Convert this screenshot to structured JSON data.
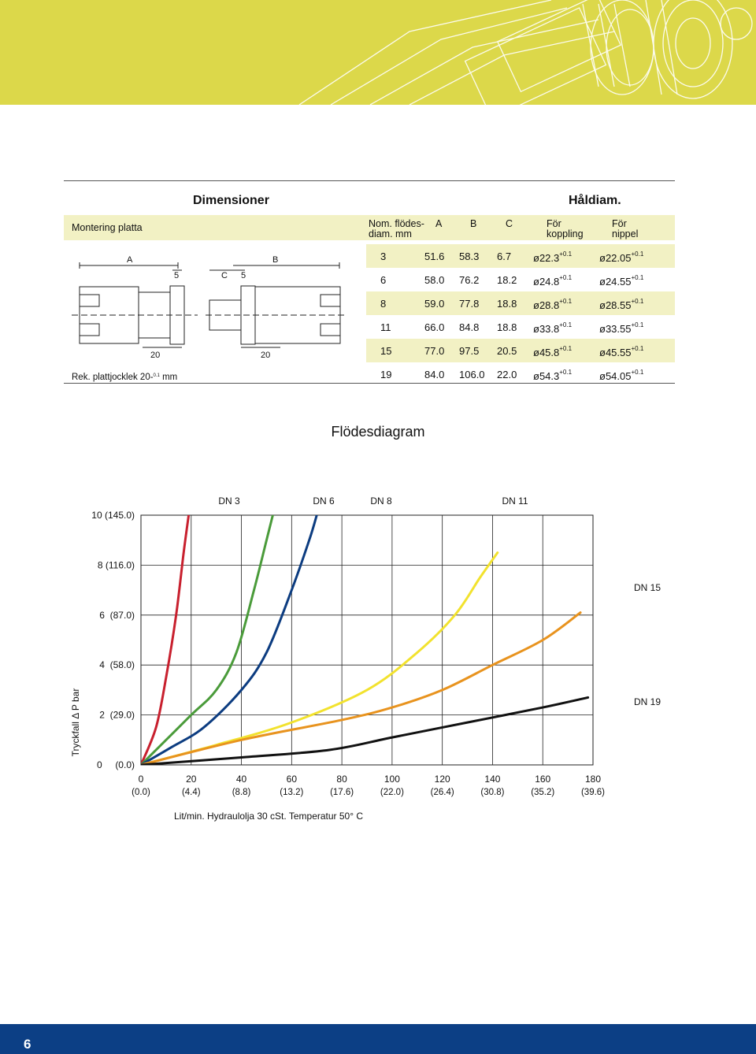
{
  "page_number": "6",
  "dimensions": {
    "title": "Dimensioner",
    "hole_title": "Håldiam.",
    "mounting_label": "Montering platta",
    "headers": {
      "nom_line1": "Nom. flödes-",
      "nom_line2": "diam. mm",
      "a": "A",
      "b": "B",
      "c": "C",
      "coupling_line1": "För",
      "coupling_line2": "koppling",
      "nipple_line1": "För",
      "nipple_line2": "nippel"
    },
    "rows": [
      {
        "nom": "3",
        "a": "51.6",
        "b": "58.3",
        "c": "6.7",
        "coupling": "ø22.3",
        "nipple": "ø22.05",
        "tol": "+0.1"
      },
      {
        "nom": "6",
        "a": "58.0",
        "b": "76.2",
        "c": "18.2",
        "coupling": "ø24.8",
        "nipple": "ø24.55",
        "tol": "+0.1"
      },
      {
        "nom": "8",
        "a": "59.0",
        "b": "77.8",
        "c": "18.8",
        "coupling": "ø28.8",
        "nipple": "ø28.55",
        "tol": "+0.1"
      },
      {
        "nom": "11",
        "a": "66.0",
        "b": "84.8",
        "c": "18.8",
        "coupling": "ø33.8",
        "nipple": "ø33.55",
        "tol": "+0.1"
      },
      {
        "nom": "15",
        "a": "77.0",
        "b": "97.5",
        "c": "20.5",
        "coupling": "ø45.8",
        "nipple": "ø45.55",
        "tol": "+0.1"
      },
      {
        "nom": "19",
        "a": "84.0",
        "b": "106.0",
        "c": "22.0",
        "coupling": "ø54.3",
        "nipple": "ø54.05",
        "tol": "+0.1"
      }
    ],
    "drawing_labels": {
      "a": "A",
      "b": "B",
      "c": "C",
      "five_left": "5",
      "five_right": "5",
      "twenty_left": "20",
      "twenty_right": "20"
    },
    "rek_prefix": "Rek. plattjocklek 20-",
    "rek_tol": "0.1",
    "rek_unit": "mm"
  },
  "chart_data": {
    "type": "line",
    "title": "Flödesdiagram",
    "ylabel": "Tryckfall  Δ P bar",
    "xlabel": "Lit/min. Hydraulolja 30 cSt. Temperatur 50° C",
    "xlim": [
      0,
      180
    ],
    "ylim": [
      0,
      10
    ],
    "grid": true,
    "x_ticks": [
      0,
      20,
      40,
      60,
      80,
      100,
      120,
      140,
      160,
      180
    ],
    "x_tick_labels": [
      "0",
      "20",
      "40",
      "60",
      "80",
      "100",
      "120",
      "140",
      "160",
      "180"
    ],
    "x_tick_sub": [
      "(0.0)",
      "(4.4)",
      "(8.8)",
      "(13.2)",
      "(17.6)",
      "(22.0)",
      "(26.4)",
      "(30.8)",
      "(35.2)",
      "(39.6)"
    ],
    "y_ticks": [
      0,
      2,
      4,
      6,
      8,
      10
    ],
    "y_tick_labels": [
      "0     (0.0)",
      "2  (29.0)",
      "4  (58.0)",
      "6  (87.0)",
      "8 (116.0)",
      "10 (145.0)"
    ],
    "series": [
      {
        "name": "DN 3",
        "color": "#c8202e",
        "x": [
          0,
          6,
          10,
          14,
          17,
          19
        ],
        "y": [
          0,
          1.5,
          3.5,
          6,
          8.5,
          10
        ]
      },
      {
        "name": "DN 6",
        "color": "#4a9b3a",
        "x": [
          0,
          10,
          20,
          30,
          38,
          45,
          50,
          52.5
        ],
        "y": [
          0,
          1,
          2,
          3,
          4.5,
          7,
          9,
          10
        ]
      },
      {
        "name": "DN 8",
        "color": "#0c3c80",
        "x": [
          0,
          12,
          25,
          40,
          50,
          60,
          67,
          70
        ],
        "y": [
          0,
          0.7,
          1.5,
          3,
          4.5,
          7,
          9,
          10
        ]
      },
      {
        "name": "DN 11",
        "color": "#f2e22e",
        "x": [
          0,
          30,
          60,
          90,
          110,
          125,
          135,
          142
        ],
        "y": [
          0,
          0.8,
          1.7,
          3,
          4.5,
          6,
          7.5,
          8.5
        ]
      },
      {
        "name": "DN 15",
        "color": "#e8931e",
        "x": [
          0,
          40,
          80,
          100,
          120,
          140,
          160,
          175
        ],
        "y": [
          0,
          1,
          1.8,
          2.3,
          3,
          4,
          5,
          6.1
        ]
      },
      {
        "name": "DN 19",
        "color": "#111111",
        "x": [
          0,
          40,
          75,
          100,
          130,
          160,
          178
        ],
        "y": [
          0,
          0.3,
          0.6,
          1.1,
          1.7,
          2.3,
          2.7
        ]
      }
    ],
    "label_positions": [
      {
        "name": "DN 3"
      },
      {
        "name": "DN 6"
      },
      {
        "name": "DN 8"
      },
      {
        "name": "DN 11"
      },
      {
        "name": "DN 15"
      },
      {
        "name": "DN 19"
      }
    ]
  }
}
